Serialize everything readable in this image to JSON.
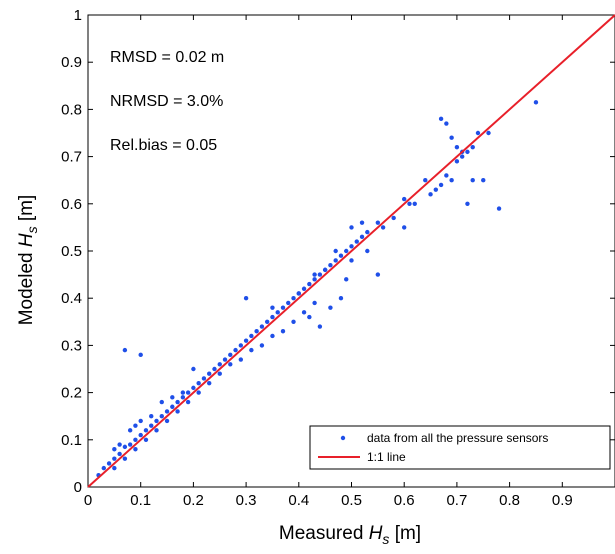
{
  "chart_data": {
    "type": "scatter",
    "xlabel_main": "Measured ",
    "xlabel_var": "H",
    "xlabel_sub": "s",
    "xlabel_unit": " [m]",
    "ylabel_main": "Modeled ",
    "ylabel_var": "H",
    "ylabel_sub": "s",
    "ylabel_unit": " [m]",
    "xlim": [
      0,
      1
    ],
    "ylim": [
      0,
      1
    ],
    "x_ticks": [
      "0",
      "0.1",
      "0.2",
      "0.3",
      "0.4",
      "0.5",
      "0.6",
      "0.7",
      "0.8",
      "0.9"
    ],
    "y_ticks": [
      "0",
      "0.1",
      "0.2",
      "0.3",
      "0.4",
      "0.5",
      "0.6",
      "0.7",
      "0.8",
      "0.9",
      "1"
    ],
    "grid": false,
    "legend_position": "bottom-right",
    "annotations": [
      "RMSD = 0.02 m",
      "NRMSD = 3.0%",
      "Rel.bias = 0.05"
    ],
    "series": [
      {
        "name": "data from all the pressure sensors",
        "marker": "dot",
        "color": "#1f4fe8",
        "points": [
          [
            0.02,
            0.025
          ],
          [
            0.03,
            0.04
          ],
          [
            0.04,
            0.05
          ],
          [
            0.05,
            0.06
          ],
          [
            0.06,
            0.07
          ],
          [
            0.07,
            0.085
          ],
          [
            0.08,
            0.09
          ],
          [
            0.09,
            0.1
          ],
          [
            0.1,
            0.11
          ],
          [
            0.11,
            0.12
          ],
          [
            0.12,
            0.13
          ],
          [
            0.13,
            0.14
          ],
          [
            0.14,
            0.15
          ],
          [
            0.15,
            0.16
          ],
          [
            0.16,
            0.17
          ],
          [
            0.17,
            0.18
          ],
          [
            0.18,
            0.19
          ],
          [
            0.19,
            0.2
          ],
          [
            0.2,
            0.21
          ],
          [
            0.21,
            0.22
          ],
          [
            0.22,
            0.23
          ],
          [
            0.23,
            0.24
          ],
          [
            0.24,
            0.25
          ],
          [
            0.25,
            0.26
          ],
          [
            0.26,
            0.27
          ],
          [
            0.27,
            0.28
          ],
          [
            0.28,
            0.29
          ],
          [
            0.29,
            0.3
          ],
          [
            0.3,
            0.31
          ],
          [
            0.31,
            0.32
          ],
          [
            0.32,
            0.33
          ],
          [
            0.33,
            0.34
          ],
          [
            0.34,
            0.35
          ],
          [
            0.35,
            0.36
          ],
          [
            0.36,
            0.37
          ],
          [
            0.37,
            0.38
          ],
          [
            0.38,
            0.39
          ],
          [
            0.39,
            0.4
          ],
          [
            0.4,
            0.41
          ],
          [
            0.41,
            0.42
          ],
          [
            0.42,
            0.43
          ],
          [
            0.43,
            0.44
          ],
          [
            0.44,
            0.45
          ],
          [
            0.45,
            0.46
          ],
          [
            0.46,
            0.47
          ],
          [
            0.47,
            0.48
          ],
          [
            0.48,
            0.49
          ],
          [
            0.49,
            0.5
          ],
          [
            0.5,
            0.51
          ],
          [
            0.51,
            0.52
          ],
          [
            0.52,
            0.53
          ],
          [
            0.53,
            0.54
          ],
          [
            0.55,
            0.56
          ],
          [
            0.56,
            0.55
          ],
          [
            0.58,
            0.57
          ],
          [
            0.6,
            0.61
          ],
          [
            0.62,
            0.6
          ],
          [
            0.64,
            0.65
          ],
          [
            0.65,
            0.62
          ],
          [
            0.66,
            0.63
          ],
          [
            0.67,
            0.64
          ],
          [
            0.68,
            0.66
          ],
          [
            0.69,
            0.65
          ],
          [
            0.7,
            0.69
          ],
          [
            0.71,
            0.7
          ],
          [
            0.72,
            0.71
          ],
          [
            0.73,
            0.65
          ],
          [
            0.74,
            0.75
          ],
          [
            0.75,
            0.65
          ],
          [
            0.07,
            0.29
          ],
          [
            0.1,
            0.28
          ],
          [
            0.3,
            0.4
          ],
          [
            0.35,
            0.38
          ],
          [
            0.4,
            0.41
          ],
          [
            0.5,
            0.55
          ],
          [
            0.52,
            0.56
          ],
          [
            0.55,
            0.45
          ],
          [
            0.6,
            0.55
          ],
          [
            0.61,
            0.6
          ],
          [
            0.67,
            0.78
          ],
          [
            0.68,
            0.77
          ],
          [
            0.69,
            0.74
          ],
          [
            0.7,
            0.72
          ],
          [
            0.71,
            0.71
          ],
          [
            0.72,
            0.6
          ],
          [
            0.73,
            0.72
          ],
          [
            0.76,
            0.75
          ],
          [
            0.78,
            0.59
          ],
          [
            0.85,
            0.815
          ],
          [
            0.42,
            0.36
          ],
          [
            0.44,
            0.34
          ],
          [
            0.46,
            0.38
          ],
          [
            0.48,
            0.4
          ],
          [
            0.43,
            0.45
          ],
          [
            0.45,
            0.46
          ],
          [
            0.47,
            0.5
          ],
          [
            0.49,
            0.44
          ],
          [
            0.5,
            0.48
          ],
          [
            0.53,
            0.5
          ],
          [
            0.05,
            0.08
          ],
          [
            0.06,
            0.09
          ],
          [
            0.08,
            0.12
          ],
          [
            0.09,
            0.13
          ],
          [
            0.1,
            0.14
          ],
          [
            0.12,
            0.15
          ],
          [
            0.14,
            0.18
          ],
          [
            0.16,
            0.19
          ],
          [
            0.18,
            0.2
          ],
          [
            0.2,
            0.25
          ],
          [
            0.05,
            0.04
          ],
          [
            0.07,
            0.06
          ],
          [
            0.09,
            0.08
          ],
          [
            0.11,
            0.1
          ],
          [
            0.13,
            0.12
          ],
          [
            0.15,
            0.14
          ],
          [
            0.17,
            0.16
          ],
          [
            0.19,
            0.18
          ],
          [
            0.21,
            0.2
          ],
          [
            0.23,
            0.22
          ],
          [
            0.25,
            0.24
          ],
          [
            0.27,
            0.26
          ],
          [
            0.29,
            0.27
          ],
          [
            0.31,
            0.29
          ],
          [
            0.33,
            0.3
          ],
          [
            0.35,
            0.32
          ],
          [
            0.37,
            0.33
          ],
          [
            0.39,
            0.35
          ],
          [
            0.41,
            0.37
          ],
          [
            0.43,
            0.39
          ]
        ]
      },
      {
        "name": "1:1 line",
        "marker": "line",
        "color": "#e8202a",
        "points": [
          [
            0,
            0
          ],
          [
            1,
            1
          ]
        ]
      }
    ]
  }
}
